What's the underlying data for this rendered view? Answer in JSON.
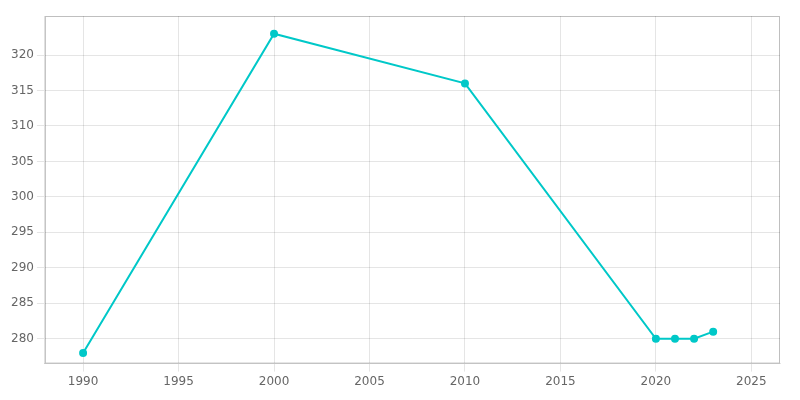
{
  "chart_data": {
    "type": "line",
    "x": [
      1990,
      2000,
      2010,
      2020,
      2021,
      2022,
      2023
    ],
    "values": [
      278,
      323,
      316,
      280,
      280,
      280,
      281
    ],
    "color": "#00C8C8",
    "marker": "circle",
    "xlim": [
      1988,
      2026.5
    ],
    "ylim": [
      276.5,
      325.5
    ],
    "xticks": [
      1990,
      1995,
      2000,
      2005,
      2010,
      2015,
      2020,
      2025
    ],
    "yticks": [
      280,
      285,
      290,
      295,
      300,
      305,
      310,
      315,
      320
    ],
    "grid": true
  }
}
